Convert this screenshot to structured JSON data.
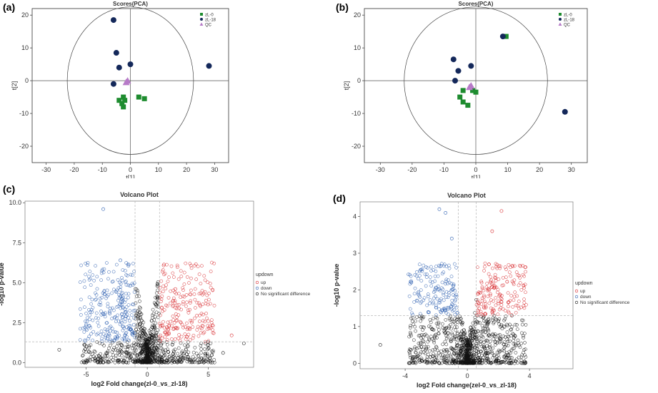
{
  "panels": [
    {
      "letter": "(a)"
    },
    {
      "letter": "(b)"
    },
    {
      "letter": "(c)"
    },
    {
      "letter": "(d)"
    }
  ],
  "colors": {
    "zl0": "#1e8c2f",
    "zl18": "#14285a",
    "qc": "#b77bc8",
    "up": "#d8262a",
    "down": "#2a5db0",
    "ns": "#111111",
    "axis": "#333333"
  },
  "chart_data": [
    {
      "type": "scatter",
      "title": "Scores(PCA)",
      "xlabel": "t[1]",
      "ylabel": "t[2]",
      "xlim": [
        -35,
        35
      ],
      "ylim": [
        -25,
        22
      ],
      "xticks": [
        -30,
        -20,
        -10,
        0,
        10,
        20,
        30
      ],
      "yticks": [
        20,
        10,
        0,
        -10,
        -20
      ],
      "ellipse_radius": 22.5,
      "legend": [
        "zL-0",
        "zL-18",
        "QC"
      ],
      "series": [
        {
          "name": "zL-0",
          "shape": "square",
          "points": [
            [
              -2.5,
              -5
            ],
            [
              -3,
              -7
            ],
            [
              -4,
              -6
            ],
            [
              -2.5,
              -8
            ],
            [
              3,
              -5
            ],
            [
              5,
              -5.5
            ],
            [
              -2,
              -6
            ]
          ]
        },
        {
          "name": "zL-18",
          "shape": "circle",
          "points": [
            [
              -6,
              18.5
            ],
            [
              -5,
              8.5
            ],
            [
              -4,
              4
            ],
            [
              0,
              5
            ],
            [
              -6,
              -1
            ],
            [
              28,
              4.5
            ]
          ]
        },
        {
          "name": "QC",
          "shape": "triangle",
          "points": [
            [
              -1,
              0
            ],
            [
              -1.5,
              -0.5
            ]
          ]
        }
      ]
    },
    {
      "type": "scatter",
      "title": "Scores(PCA)",
      "xlabel": "t[1]",
      "ylabel": "t[2]",
      "xlim": [
        -35,
        35
      ],
      "ylim": [
        -25,
        22
      ],
      "xticks": [
        -30,
        -20,
        -10,
        0,
        10,
        20,
        30
      ],
      "yticks": [
        20,
        10,
        0,
        -10,
        -20
      ],
      "ellipse_radius": 22.5,
      "legend": [
        "zL-0",
        "zL-18",
        "QC"
      ],
      "series": [
        {
          "name": "zL-0",
          "shape": "square",
          "points": [
            [
              -4,
              -3
            ],
            [
              -5,
              -5
            ],
            [
              -4,
              -6.5
            ],
            [
              -2.5,
              -7.5
            ],
            [
              -1,
              -3
            ],
            [
              0,
              -3.5
            ],
            [
              9.5,
              13.5
            ]
          ]
        },
        {
          "name": "zL-18",
          "shape": "circle",
          "points": [
            [
              -7,
              6.5
            ],
            [
              -5.5,
              3
            ],
            [
              -1.5,
              4.5
            ],
            [
              -6.5,
              0
            ],
            [
              8.5,
              13.5
            ],
            [
              28,
              -9.5
            ]
          ]
        },
        {
          "name": "QC",
          "shape": "triangle",
          "points": [
            [
              -1.5,
              -1.5
            ],
            [
              -2,
              -2
            ]
          ]
        }
      ]
    },
    {
      "type": "scatter",
      "title": "Volcano Plot",
      "xlabel": "log2 Fold change(zl-0_vs_zl-18)",
      "ylabel": "-log10 p-value",
      "xlim": [
        -10,
        8.7
      ],
      "ylim": [
        -0.3,
        10.1
      ],
      "xticks": [
        -5,
        0,
        5
      ],
      "xtick_labels": [
        "-5",
        "0",
        "5"
      ],
      "yticks": [
        0,
        2.5,
        5,
        7.5,
        10
      ],
      "ytick_labels": [
        "0.0",
        "2.5",
        "5.0",
        "7.5",
        "10.0"
      ],
      "fc_threshold": 1,
      "p_threshold": 1.3,
      "legend_title": "updown",
      "legend": [
        "up",
        "down",
        "No significant difference"
      ],
      "highlights": [
        [
          -3.6,
          9.6
        ],
        [
          -2.2,
          6.4
        ],
        [
          7.9,
          1.2
        ],
        [
          6.9,
          1.7
        ],
        [
          -7.2,
          0.8
        ],
        [
          6.2,
          0.6
        ],
        [
          -1.4,
          4.8
        ],
        [
          2.3,
          4.6
        ]
      ]
    },
    {
      "type": "scatter",
      "title": "Volcano Plot",
      "xlabel": "log2 Fold change(zel-0_vs_zl-18)",
      "ylabel": "-log10 p-value",
      "xlim": [
        -6.9,
        6.8
      ],
      "ylim": [
        -0.15,
        4.4
      ],
      "xticks": [
        -4,
        0,
        4
      ],
      "xtick_labels": [
        "-4",
        "0",
        "4"
      ],
      "yticks": [
        0,
        1,
        2,
        3,
        4
      ],
      "ytick_labels": [
        "0",
        "1",
        "2",
        "3",
        "4"
      ],
      "fc_threshold": 0.58,
      "p_threshold": 1.3,
      "legend_title": "updown",
      "legend": [
        "up",
        "down",
        "No significant difference"
      ],
      "highlights": [
        [
          -1.8,
          4.2
        ],
        [
          -1.4,
          4.1
        ],
        [
          2.2,
          4.15
        ],
        [
          -1.0,
          3.4
        ],
        [
          -3.6,
          2.2
        ],
        [
          -5.6,
          0.5
        ],
        [
          3.0,
          0.7
        ],
        [
          1.6,
          3.6
        ]
      ]
    }
  ]
}
